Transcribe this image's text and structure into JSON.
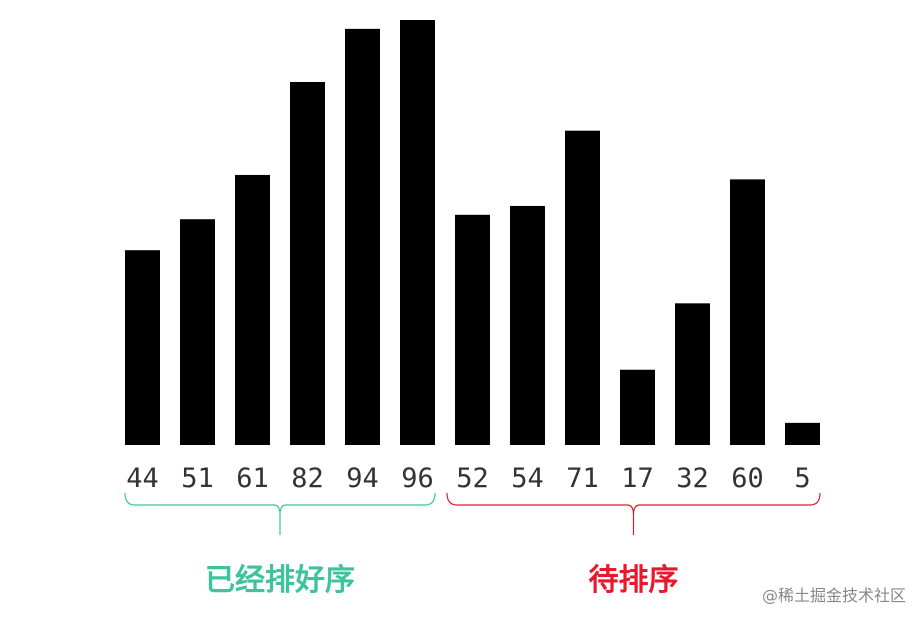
{
  "chart_data": {
    "type": "bar",
    "categories": [
      "44",
      "51",
      "61",
      "82",
      "94",
      "96",
      "52",
      "54",
      "71",
      "17",
      "32",
      "60",
      "5"
    ],
    "values": [
      44,
      51,
      61,
      82,
      94,
      96,
      52,
      54,
      71,
      17,
      32,
      60,
      5
    ],
    "bar_color": "#000000",
    "ylim": [
      0,
      96
    ],
    "grid": false,
    "groups": [
      {
        "label": "已经排好序",
        "start": 0,
        "end": 5,
        "color": "#3cc59a"
      },
      {
        "label": "待排序",
        "start": 6,
        "end": 12,
        "color": "#e8192c"
      }
    ]
  },
  "watermark": "@稀土掘金技术社区"
}
